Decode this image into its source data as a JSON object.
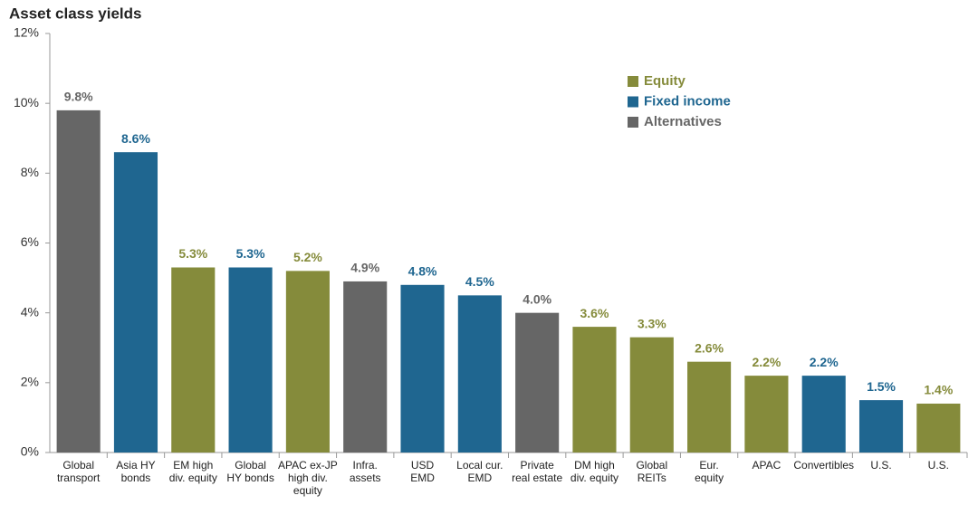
{
  "chart_data": {
    "type": "bar",
    "title": "Asset class yields",
    "categories": [
      "Global\ntransport",
      "Asia HY\nbonds",
      "EM high\ndiv. equity",
      "Global\nHY bonds",
      "APAC ex-JP\nhigh div.\nequity",
      "Infra.\nassets",
      "USD\nEMD",
      "Local cur.\nEMD",
      "Private\nreal estate",
      "DM high\ndiv. equity",
      "Global\nREITs",
      "Eur.\nequity",
      "APAC",
      "Convertibles",
      "U.S.",
      "U.S."
    ],
    "series": [
      {
        "name": "Equity",
        "color": "#858b3b",
        "values": [
          null,
          null,
          5.3,
          null,
          5.2,
          null,
          null,
          null,
          null,
          3.6,
          3.3,
          2.6,
          2.2,
          null,
          null,
          1.4
        ],
        "value_labels": [
          null,
          null,
          "5.3%",
          null,
          "5.2%",
          null,
          null,
          null,
          null,
          "3.6%",
          "3.3%",
          "2.6%",
          "2.2%",
          null,
          null,
          "1.4%"
        ]
      },
      {
        "name": "Fixed income",
        "color": "#1f6690",
        "values": [
          null,
          8.6,
          null,
          5.3,
          null,
          null,
          4.8,
          4.5,
          null,
          null,
          null,
          null,
          null,
          2.2,
          1.5,
          null
        ],
        "value_labels": [
          null,
          "8.6%",
          null,
          "5.3%",
          null,
          null,
          "4.8%",
          "4.5%",
          null,
          null,
          null,
          null,
          null,
          "2.2%",
          "1.5%",
          null
        ]
      },
      {
        "name": "Alternatives",
        "color": "#666666",
        "values": [
          9.8,
          null,
          null,
          null,
          null,
          4.9,
          null,
          null,
          4.0,
          null,
          null,
          null,
          null,
          null,
          null,
          null
        ],
        "value_labels": [
          "9.8%",
          null,
          null,
          null,
          null,
          "4.9%",
          null,
          null,
          "4.0%",
          null,
          null,
          null,
          null,
          null,
          null,
          null
        ]
      }
    ],
    "ylim": [
      0,
      12
    ],
    "yticks": [
      {
        "value": 0,
        "label": "0%"
      },
      {
        "value": 2,
        "label": "2%"
      },
      {
        "value": 4,
        "label": "4%"
      },
      {
        "value": 6,
        "label": "6%"
      },
      {
        "value": 8,
        "label": "8%"
      },
      {
        "value": 10,
        "label": "10%"
      },
      {
        "value": 12,
        "label": "12%"
      }
    ],
    "legend": "upper right"
  }
}
